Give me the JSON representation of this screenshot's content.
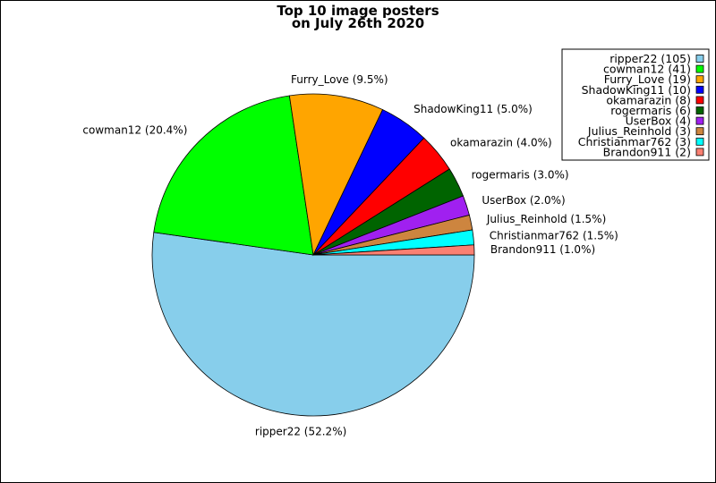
{
  "chart_data": {
    "type": "pie",
    "title_lines": [
      "Top 10 image posters",
      "on July 26th 2020"
    ],
    "slices": [
      {
        "name": "ripper22",
        "count": 105,
        "percent": 52.2,
        "color": "#87ceeb",
        "label": "ripper22 (52.2%)",
        "legend_label": "ripper22 (105)"
      },
      {
        "name": "cowman12",
        "count": 41,
        "percent": 20.4,
        "color": "#00ff00",
        "label": "cowman12 (20.4%)",
        "legend_label": "cowman12 (41)"
      },
      {
        "name": "Furry_Love",
        "count": 19,
        "percent": 9.5,
        "color": "#ffa500",
        "label": "Furry_Love (9.5%)",
        "legend_label": "Furry_Love (19)"
      },
      {
        "name": "ShadowKing11",
        "count": 10,
        "percent": 5.0,
        "color": "#0000ff",
        "label": "ShadowKing11 (5.0%)",
        "legend_label": "ShadowKing11 (10)"
      },
      {
        "name": "okamarazin",
        "count": 8,
        "percent": 4.0,
        "color": "#ff0000",
        "label": "okamarazin (4.0%)",
        "legend_label": "okamarazin (8)"
      },
      {
        "name": "rogermaris",
        "count": 6,
        "percent": 3.0,
        "color": "#006400",
        "label": "rogermaris (3.0%)",
        "legend_label": "rogermaris (6)"
      },
      {
        "name": "UserBox",
        "count": 4,
        "percent": 2.0,
        "color": "#a020f0",
        "label": "UserBox (2.0%)",
        "legend_label": "UserBox (4)"
      },
      {
        "name": "Julius_Reinhold",
        "count": 3,
        "percent": 1.5,
        "color": "#cd853f",
        "label": "Julius_Reinhold (1.5%)",
        "legend_label": "Julius_Reinhold (3)"
      },
      {
        "name": "Christianmar762",
        "count": 3,
        "percent": 1.5,
        "color": "#00ffff",
        "label": "Christianmar762 (1.5%)",
        "legend_label": "Christianmar762 (3)"
      },
      {
        "name": "Brandon911",
        "count": 2,
        "percent": 1.0,
        "color": "#fa8072",
        "label": "Brandon911 (1.0%)",
        "legend_label": "Brandon911 (2)"
      }
    ],
    "start_angle_deg": 0,
    "direction": "clockwise",
    "legend_position": "top-right"
  }
}
